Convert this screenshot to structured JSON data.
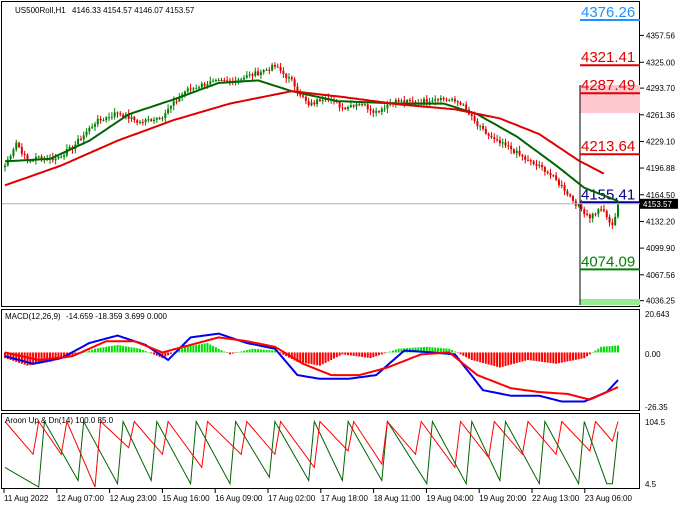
{
  "header": {
    "symbol": "US500Roll,H1",
    "ohlc": "4146.33 4154.57 4146.07 4153.57"
  },
  "panels": {
    "macd": {
      "label": "MACD(12,26,9)",
      "values": "-14.659 -18.359 3.699 0.000",
      "ticks": [
        "20.643",
        "0.00",
        "-26.35"
      ]
    },
    "aroon": {
      "label": "Aroon Up & Dn(14) 100.0 85.0",
      "ticks": [
        "104.5",
        "4.5"
      ]
    }
  },
  "chart_data": {
    "type": "candlestick",
    "timeframe": "H1",
    "ylim": [
      4031,
      4398
    ],
    "yticks": [
      "4357.56",
      "4325.00",
      "4293.70",
      "4261.36",
      "4229.10",
      "4196.88",
      "4164.50",
      "4132.20",
      "4099.90",
      "4067.56",
      "4036.25"
    ],
    "xticks": [
      "11 Aug 2022",
      "12 Aug 07:00",
      "12 Aug 23:00",
      "15 Aug 16:00",
      "16 Aug 09:00",
      "17 Aug 02:00",
      "17 Aug 18:00",
      "18 Aug 11:00",
      "19 Aug 04:00",
      "19 Aug 20:00",
      "22 Aug 13:00",
      "23 Aug 06:00"
    ],
    "current_price": "4153.57",
    "levels": [
      {
        "label": "4376.26",
        "value": 4376.26,
        "color": "#1e90ff"
      },
      {
        "label": "4321.41",
        "value": 4321.41,
        "color": "#e00000"
      },
      {
        "label": "4287.49",
        "value": 4287.49,
        "color": "#e00000"
      },
      {
        "label": "4213.64",
        "value": 4213.64,
        "color": "#e00000"
      },
      {
        "label": "4155.41",
        "value": 4155.41,
        "color": "#00008b"
      },
      {
        "label": "4074.09",
        "value": 4074.09,
        "color": "#008000"
      }
    ],
    "close_anchors": [
      [
        0,
        4200
      ],
      [
        4,
        4228
      ],
      [
        8,
        4205
      ],
      [
        12,
        4210
      ],
      [
        18,
        4208
      ],
      [
        24,
        4222
      ],
      [
        32,
        4252
      ],
      [
        40,
        4264
      ],
      [
        48,
        4252
      ],
      [
        56,
        4260
      ],
      [
        64,
        4290
      ],
      [
        72,
        4300
      ],
      [
        80,
        4302
      ],
      [
        88,
        4310
      ],
      [
        96,
        4320
      ],
      [
        102,
        4302
      ],
      [
        108,
        4272
      ],
      [
        114,
        4284
      ],
      [
        120,
        4270
      ],
      [
        126,
        4276
      ],
      [
        132,
        4265
      ],
      [
        138,
        4278
      ],
      [
        146,
        4276
      ],
      [
        154,
        4282
      ],
      [
        162,
        4276
      ],
      [
        168,
        4248
      ],
      [
        174,
        4230
      ],
      [
        180,
        4220
      ],
      [
        186,
        4205
      ],
      [
        192,
        4195
      ],
      [
        198,
        4175
      ],
      [
        204,
        4150
      ],
      [
        208,
        4138
      ],
      [
        212,
        4148
      ],
      [
        216,
        4126
      ],
      [
        218,
        4153.57
      ]
    ],
    "series": [
      {
        "name": "",
        "color": "#006400",
        "anchors": [
          [
            0,
            4205
          ],
          [
            16,
            4208
          ],
          [
            30,
            4230
          ],
          [
            44,
            4262
          ],
          [
            60,
            4280
          ],
          [
            76,
            4300
          ],
          [
            90,
            4303
          ],
          [
            102,
            4290
          ],
          [
            118,
            4278
          ],
          [
            140,
            4275
          ],
          [
            156,
            4275
          ],
          [
            168,
            4262
          ],
          [
            182,
            4235
          ],
          [
            196,
            4200
          ],
          [
            206,
            4173
          ],
          [
            218,
            4157
          ]
        ]
      },
      {
        "name": "",
        "color": "#e00000",
        "anchors": [
          [
            0,
            4176
          ],
          [
            20,
            4200
          ],
          [
            40,
            4230
          ],
          [
            60,
            4255
          ],
          [
            80,
            4275
          ],
          [
            102,
            4290
          ],
          [
            120,
            4283
          ],
          [
            140,
            4274
          ],
          [
            160,
            4268
          ],
          [
            176,
            4257
          ],
          [
            190,
            4238
          ],
          [
            204,
            4206
          ],
          [
            213,
            4190
          ]
        ]
      }
    ],
    "macd": {
      "ylim": [
        -30,
        22
      ],
      "hist_anchors": [
        [
          0,
          -3
        ],
        [
          8,
          -7
        ],
        [
          16,
          -5
        ],
        [
          24,
          -2
        ],
        [
          32,
          2
        ],
        [
          40,
          4
        ],
        [
          48,
          2
        ],
        [
          56,
          -3
        ],
        [
          64,
          3
        ],
        [
          72,
          5
        ],
        [
          80,
          -1
        ],
        [
          88,
          2
        ],
        [
          96,
          1
        ],
        [
          104,
          -5
        ],
        [
          112,
          -7
        ],
        [
          120,
          -1
        ],
        [
          130,
          -3
        ],
        [
          140,
          2
        ],
        [
          150,
          3
        ],
        [
          158,
          2
        ],
        [
          166,
          -4
        ],
        [
          176,
          -8
        ],
        [
          186,
          -4
        ],
        [
          196,
          -6
        ],
        [
          206,
          -3
        ],
        [
          212,
          3
        ],
        [
          218,
          3.699
        ]
      ],
      "macd_anchors": [
        [
          0,
          -2
        ],
        [
          10,
          -6
        ],
        [
          20,
          -3
        ],
        [
          30,
          5
        ],
        [
          40,
          9
        ],
        [
          50,
          4
        ],
        [
          58,
          -4
        ],
        [
          66,
          8
        ],
        [
          76,
          10
        ],
        [
          86,
          5
        ],
        [
          96,
          2
        ],
        [
          104,
          -12
        ],
        [
          112,
          -14
        ],
        [
          122,
          -14
        ],
        [
          132,
          -12
        ],
        [
          142,
          1
        ],
        [
          152,
          0
        ],
        [
          160,
          -1
        ],
        [
          170,
          -20
        ],
        [
          180,
          -23
        ],
        [
          190,
          -23
        ],
        [
          198,
          -26
        ],
        [
          206,
          -26
        ],
        [
          214,
          -21
        ],
        [
          218,
          -14.659
        ]
      ],
      "signal_anchors": [
        [
          0,
          0
        ],
        [
          12,
          -4
        ],
        [
          24,
          -2
        ],
        [
          36,
          6
        ],
        [
          46,
          6
        ],
        [
          56,
          0
        ],
        [
          66,
          4
        ],
        [
          76,
          8
        ],
        [
          86,
          6
        ],
        [
          96,
          3
        ],
        [
          106,
          -6
        ],
        [
          116,
          -12
        ],
        [
          126,
          -12
        ],
        [
          136,
          -8
        ],
        [
          148,
          -1
        ],
        [
          158,
          0
        ],
        [
          168,
          -12
        ],
        [
          180,
          -19
        ],
        [
          190,
          -21
        ],
        [
          200,
          -22
        ],
        [
          208,
          -25
        ],
        [
          218,
          -18.359
        ]
      ]
    },
    "aroon": {
      "ylim": [
        0,
        110
      ],
      "up_anchors": [
        [
          0,
          100
        ],
        [
          10,
          50
        ],
        [
          12,
          100
        ],
        [
          20,
          50
        ],
        [
          22,
          100
        ],
        [
          32,
          0
        ],
        [
          34,
          100
        ],
        [
          44,
          60
        ],
        [
          46,
          100
        ],
        [
          56,
          50
        ],
        [
          58,
          100
        ],
        [
          70,
          30
        ],
        [
          72,
          100
        ],
        [
          84,
          50
        ],
        [
          86,
          100
        ],
        [
          96,
          50
        ],
        [
          98,
          100
        ],
        [
          110,
          30
        ],
        [
          112,
          100
        ],
        [
          122,
          55
        ],
        [
          124,
          100
        ],
        [
          134,
          35
        ],
        [
          136,
          100
        ],
        [
          146,
          50
        ],
        [
          148,
          100
        ],
        [
          160,
          30
        ],
        [
          162,
          100
        ],
        [
          172,
          45
        ],
        [
          174,
          100
        ],
        [
          184,
          50
        ],
        [
          186,
          100
        ],
        [
          196,
          50
        ],
        [
          198,
          100
        ],
        [
          208,
          55
        ],
        [
          210,
          100
        ],
        [
          216,
          70
        ],
        [
          218,
          100
        ]
      ],
      "down_anchors": [
        [
          0,
          30
        ],
        [
          12,
          0
        ],
        [
          14,
          100
        ],
        [
          26,
          10
        ],
        [
          28,
          100
        ],
        [
          40,
          5
        ],
        [
          42,
          100
        ],
        [
          52,
          10
        ],
        [
          54,
          100
        ],
        [
          66,
          5
        ],
        [
          68,
          100
        ],
        [
          80,
          5
        ],
        [
          82,
          100
        ],
        [
          94,
          15
        ],
        [
          96,
          100
        ],
        [
          108,
          10
        ],
        [
          110,
          100
        ],
        [
          120,
          10
        ],
        [
          122,
          100
        ],
        [
          134,
          10
        ],
        [
          136,
          100
        ],
        [
          150,
          5
        ],
        [
          152,
          100
        ],
        [
          164,
          5
        ],
        [
          166,
          100
        ],
        [
          176,
          10
        ],
        [
          178,
          100
        ],
        [
          190,
          5
        ],
        [
          192,
          100
        ],
        [
          204,
          5
        ],
        [
          206,
          100
        ],
        [
          214,
          5
        ],
        [
          216,
          5
        ],
        [
          218,
          85
        ]
      ]
    }
  }
}
